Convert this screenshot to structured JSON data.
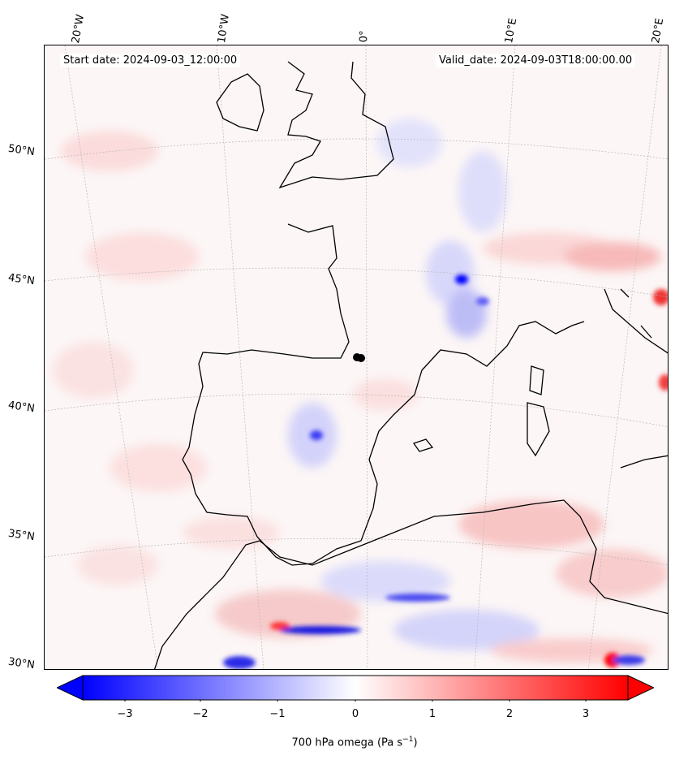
{
  "map": {
    "start_date": "Start date: 2024-09-03_12:00:00",
    "valid_date": "Valid_date: 2024-09-03T18:00:00.00",
    "lon_labels": [
      "20°W",
      "10°W",
      "0°",
      "10°E",
      "20°E"
    ],
    "lat_labels": [
      "50°N",
      "45°N",
      "40°N",
      "35°N",
      "30°N"
    ],
    "colors": {
      "negative": "#0000ff",
      "positive": "#ff0000",
      "neutral": "#ffffff",
      "coast": "#000000"
    }
  },
  "colorbar": {
    "variable": "700 hPa omega",
    "unit_base": "(Pa s",
    "unit_exp": "−1",
    "unit_close": ")",
    "ticks": [
      "−3",
      "−2",
      "−1",
      "0",
      "1",
      "2",
      "3"
    ],
    "range": [
      -3.8,
      3.8
    ],
    "extend": "both"
  }
}
